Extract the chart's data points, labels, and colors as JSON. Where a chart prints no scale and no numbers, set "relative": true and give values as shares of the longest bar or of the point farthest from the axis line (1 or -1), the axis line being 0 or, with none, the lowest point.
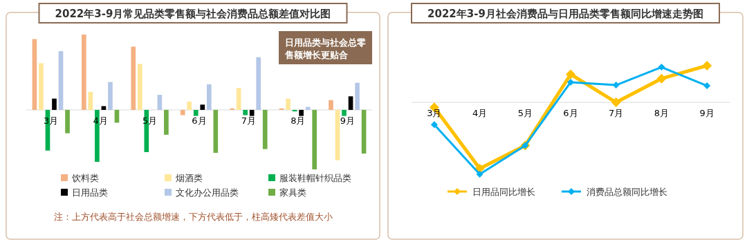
{
  "chart_data": [
    {
      "type": "bar",
      "title": "2022年3-9月常见品类零售额与社会消费品总额差值对比图",
      "relative": true,
      "legend": "bottom",
      "categories": [
        "3月",
        "4月",
        "5月",
        "6月",
        "7月",
        "8月",
        "9月"
      ],
      "series": [
        {
          "name": "饮料类",
          "color": "#f4b183",
          "values": [
            0.94,
            1.0,
            0.84,
            -0.07,
            0.02,
            0.02,
            0.13
          ]
        },
        {
          "name": "烟酒类",
          "color": "#ffe699",
          "values": [
            0.62,
            0.24,
            0.61,
            0.11,
            0.29,
            0.15,
            -0.67
          ]
        },
        {
          "name": "服装鞋帽针织品类",
          "color": "#00b050",
          "values": [
            -0.54,
            -0.69,
            -0.56,
            -0.08,
            -0.07,
            -0.02,
            -0.08
          ]
        },
        {
          "name": "日用品类",
          "color": "#000000",
          "values": [
            0.15,
            0.05,
            0,
            0.07,
            -0.08,
            -0.08,
            0.18
          ]
        },
        {
          "name": "文化办公用品类",
          "color": "#b4c7e7",
          "values": [
            0.78,
            0.37,
            0.2,
            0.34,
            0.7,
            0.04,
            0.36
          ]
        },
        {
          "name": "家具类",
          "color": "#70ad47",
          "values": [
            -0.31,
            -0.17,
            -0.33,
            -0.57,
            -0.52,
            -0.79,
            -0.58
          ]
        }
      ],
      "annotations": [
        "日用品类与社会总零售额增长更贴合",
        "注：上方代表高于社会总额增速，下方代表低于，柱高矮代表差值大小"
      ]
    },
    {
      "type": "line",
      "title": "2022年3-9月社会消费品与日用品类零售额同比增速走势图",
      "relative": true,
      "legend": "bottom",
      "marker": "diamond",
      "categories": [
        "3月",
        "4月",
        "5月",
        "6月",
        "7月",
        "8月",
        "9月"
      ],
      "series": [
        {
          "name": "日用品同比增长",
          "color": "#ffc000",
          "values": [
            -0.07,
            -0.92,
            -0.6,
            0.39,
            0,
            0.33,
            0.51
          ]
        },
        {
          "name": "消费品总额同比增长",
          "color": "#00b0f0",
          "values": [
            -0.31,
            -1,
            -0.6,
            0.28,
            0.24,
            0.49,
            0.23
          ]
        }
      ]
    }
  ]
}
